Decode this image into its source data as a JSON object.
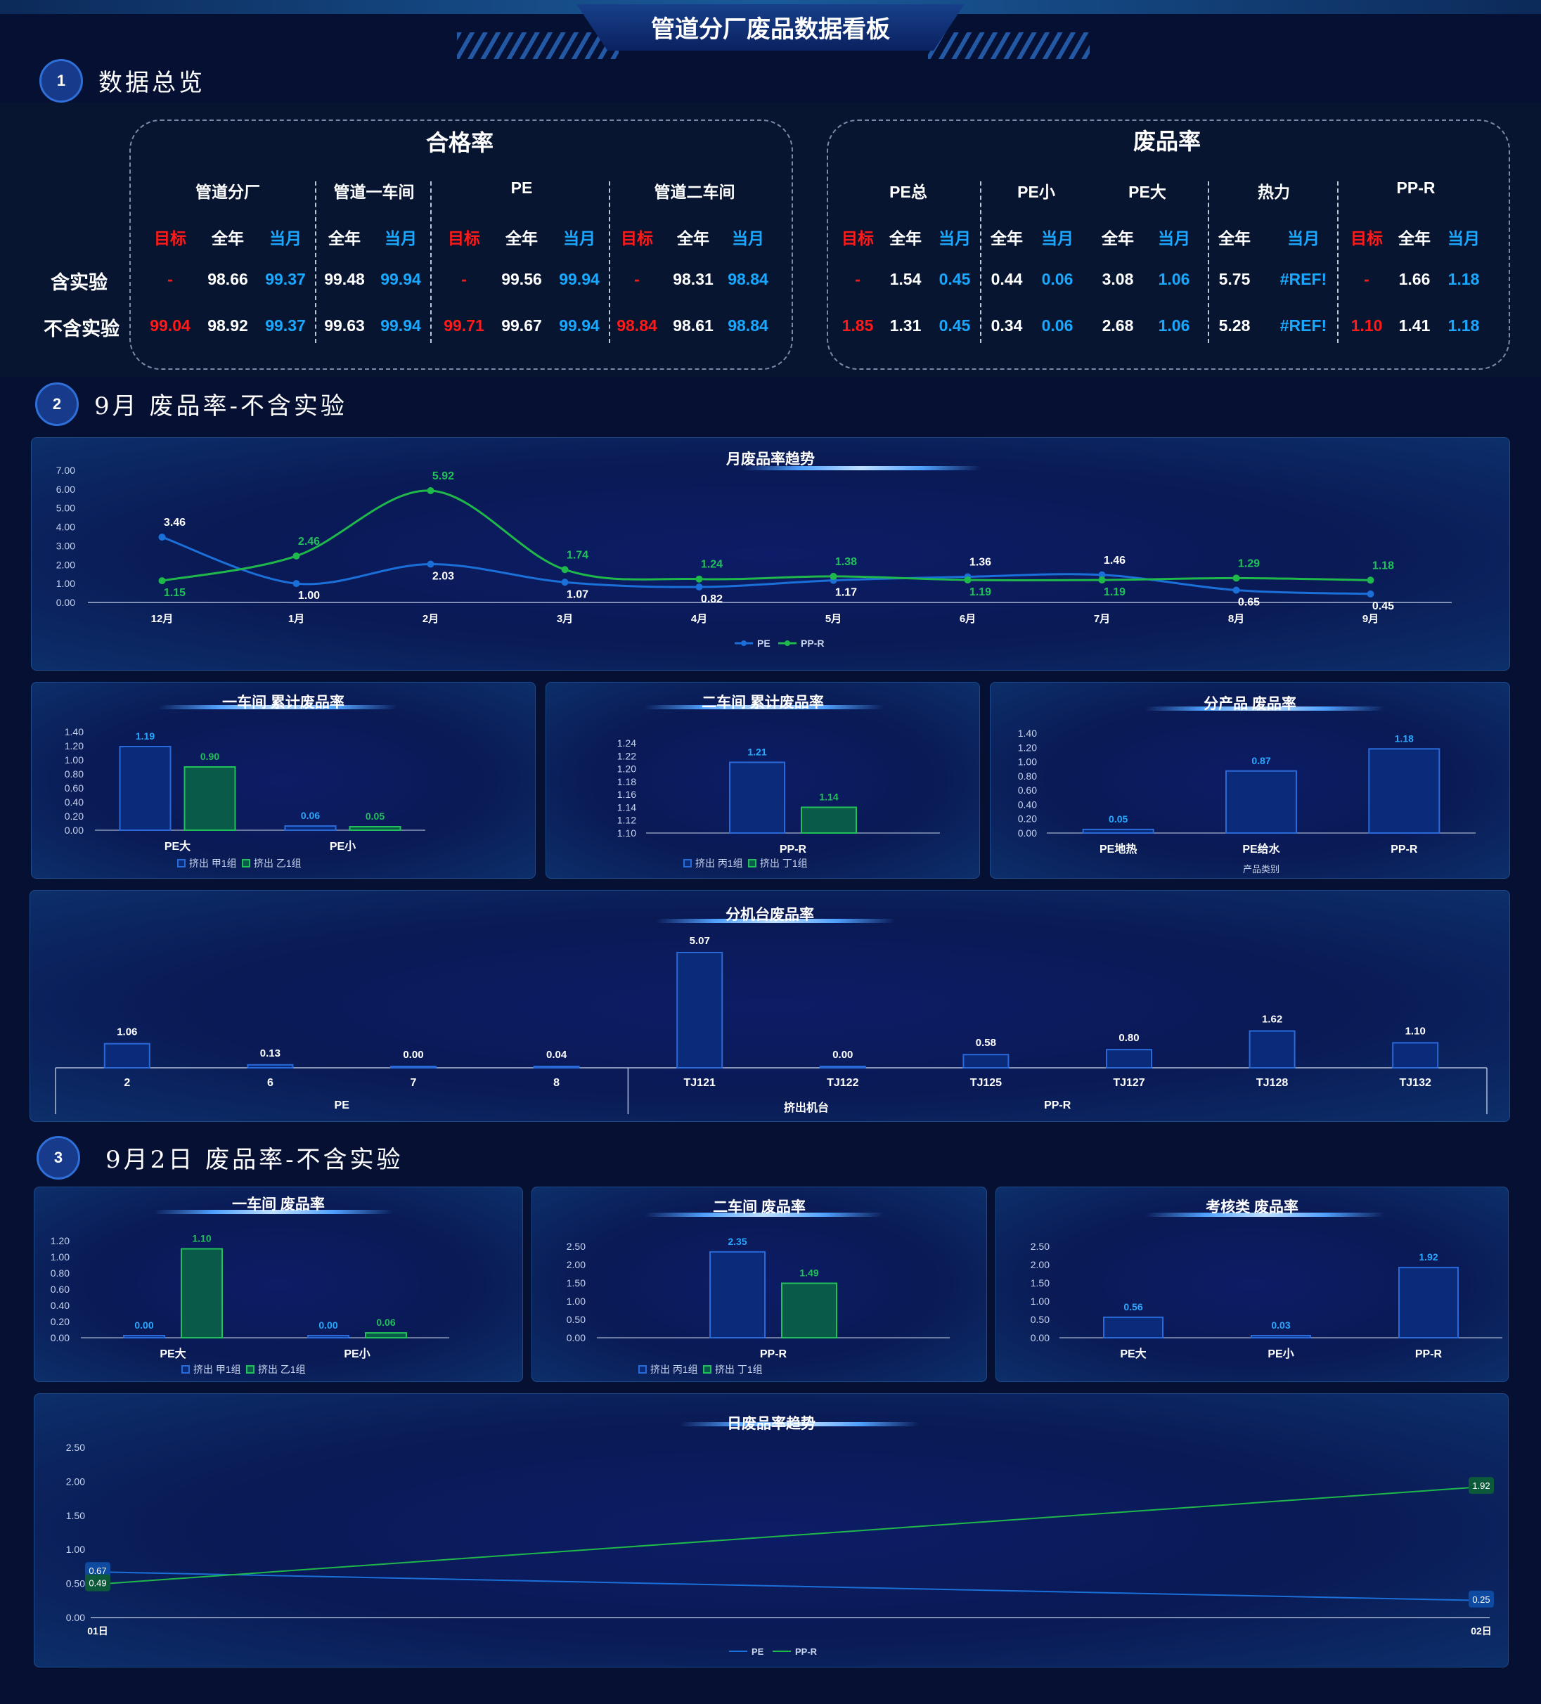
{
  "page": {
    "title": "管道分厂废品数据看板"
  },
  "sections": [
    {
      "num": "1",
      "title": "数据总览"
    },
    {
      "num": "2",
      "title": "9月 废品率-不含实验"
    },
    {
      "num": "3",
      "title": "9月2日 废品率-不含实验"
    }
  ],
  "overview": {
    "pass": {
      "title": "合格率",
      "groups": [
        "管道分厂",
        "管道一车间",
        "PE",
        "管道二车间"
      ],
      "subheads": [
        {
          "t": "目标",
          "c": "red"
        },
        {
          "t": "全年",
          "c": "white"
        },
        {
          "t": "当月",
          "c": "blue"
        },
        {
          "t": "全年",
          "c": "white"
        },
        {
          "t": "当月",
          "c": "blue"
        },
        {
          "t": "目标",
          "c": "red"
        },
        {
          "t": "全年",
          "c": "white"
        },
        {
          "t": "当月",
          "c": "blue"
        },
        {
          "t": "目标",
          "c": "red"
        },
        {
          "t": "全年",
          "c": "white"
        },
        {
          "t": "当月",
          "c": "blue"
        }
      ],
      "rows": [
        [
          "-",
          "98.66",
          "99.37",
          "99.48",
          "99.94",
          "-",
          "99.56",
          "99.94",
          "-",
          "98.31",
          "98.84"
        ],
        [
          "99.04",
          "98.92",
          "99.37",
          "99.63",
          "99.94",
          "99.71",
          "99.67",
          "99.94",
          "98.84",
          "98.61",
          "98.84"
        ]
      ]
    },
    "scrap": {
      "title": "废品率",
      "groups": [
        "PE总",
        "PE小",
        "PE大",
        "热力",
        "PP-R"
      ],
      "subheads": [
        {
          "t": "目标",
          "c": "red"
        },
        {
          "t": "全年",
          "c": "white"
        },
        {
          "t": "当月",
          "c": "blue"
        },
        {
          "t": "全年",
          "c": "white"
        },
        {
          "t": "当月",
          "c": "blue"
        },
        {
          "t": "全年",
          "c": "white"
        },
        {
          "t": "当月",
          "c": "blue"
        },
        {
          "t": "全年",
          "c": "white"
        },
        {
          "t": "当月",
          "c": "blue"
        },
        {
          "t": "目标",
          "c": "red"
        },
        {
          "t": "全年",
          "c": "white"
        },
        {
          "t": "当月",
          "c": "blue"
        }
      ],
      "rows": [
        [
          "-",
          "1.54",
          "0.45",
          "0.44",
          "0.06",
          "3.08",
          "1.06",
          "5.75",
          "#REF!",
          "-",
          "1.66",
          "1.18"
        ],
        [
          "1.85",
          "1.31",
          "0.45",
          "0.34",
          "0.06",
          "2.68",
          "1.06",
          "5.28",
          "#REF!",
          "1.10",
          "1.41",
          "1.18"
        ]
      ]
    },
    "row_labels": [
      "含实验",
      "不含实验"
    ]
  },
  "colors": {
    "pe": "#1b6fd8",
    "ppr": "#1fb84a",
    "target": "#ff1a1a",
    "current": "#1aa8ff"
  },
  "chart_data": [
    {
      "id": "monthly",
      "type": "line",
      "title": "月废品率趋势",
      "categories": [
        "12月",
        "1月",
        "2月",
        "3月",
        "4月",
        "5月",
        "6月",
        "7月",
        "8月",
        "9月"
      ],
      "series": [
        {
          "name": "PE",
          "values": [
            3.46,
            1.0,
            2.03,
            1.07,
            0.82,
            1.17,
            1.36,
            1.46,
            0.65,
            0.45
          ]
        },
        {
          "name": "PP-R",
          "values": [
            1.15,
            2.46,
            5.92,
            1.74,
            1.24,
            1.38,
            1.19,
            1.19,
            1.29,
            1.18
          ]
        }
      ],
      "yticks": [
        "0.00",
        "1.00",
        "2.00",
        "3.00",
        "4.00",
        "5.00",
        "6.00",
        "7.00"
      ],
      "ylim": [
        0,
        7
      ],
      "legend": "bottom"
    },
    {
      "id": "w1cum",
      "type": "bar",
      "title": "一车间 累计废品率",
      "categories": [
        "PE大",
        "PE小"
      ],
      "series": [
        {
          "name": "挤出 甲1组",
          "values": [
            1.19,
            0.06
          ]
        },
        {
          "name": "挤出 乙1组",
          "values": [
            0.9,
            0.05
          ]
        }
      ],
      "yticks": [
        "0.00",
        "0.20",
        "0.40",
        "0.60",
        "0.80",
        "1.00",
        "1.20",
        "1.40"
      ],
      "ylim": [
        0,
        1.4
      ],
      "legend": "bottom"
    },
    {
      "id": "w2cum",
      "type": "bar",
      "title": "二车间 累计废品率",
      "categories": [
        "PP-R"
      ],
      "series": [
        {
          "name": "挤出 丙1组",
          "values": [
            1.21
          ]
        },
        {
          "name": "挤出 丁1组",
          "values": [
            1.14
          ]
        }
      ],
      "yticks": [
        "1.10",
        "1.12",
        "1.14",
        "1.16",
        "1.18",
        "1.20",
        "1.22",
        "1.24"
      ],
      "ylim": [
        1.1,
        1.24
      ],
      "legend": "bottom"
    },
    {
      "id": "product",
      "type": "bar",
      "title": "分产品 废品率",
      "categories": [
        "PE地热",
        "PE给水",
        "PP-R"
      ],
      "series": [
        {
          "values": [
            0.05,
            0.87,
            1.18
          ]
        }
      ],
      "xlabel": "产品类别",
      "yticks": [
        "0.00",
        "0.20",
        "0.40",
        "0.60",
        "0.80",
        "1.00",
        "1.20",
        "1.40"
      ],
      "ylim": [
        0,
        1.4
      ]
    },
    {
      "id": "machine",
      "type": "bar",
      "title": "分机台废品率",
      "categories": [
        "2",
        "6",
        "7",
        "8",
        "TJ121",
        "TJ122",
        "TJ125",
        "TJ127",
        "TJ128",
        "TJ132"
      ],
      "groups": [
        {
          "label": "PE",
          "span": 4
        },
        {
          "label": "PP-R",
          "span": 6
        }
      ],
      "series": [
        {
          "values": [
            1.06,
            0.13,
            0.0,
            0.04,
            5.07,
            0.0,
            0.58,
            0.8,
            1.62,
            1.1
          ]
        }
      ],
      "xlabel": "挤出机台",
      "ylim": [
        0,
        5.07
      ]
    },
    {
      "id": "w1day",
      "type": "bar",
      "title": "一车间 废品率",
      "categories": [
        "PE大",
        "PE小"
      ],
      "series": [
        {
          "name": "挤出 甲1组",
          "values": [
            0.0,
            0.0
          ]
        },
        {
          "name": "挤出 乙1组",
          "values": [
            1.1,
            0.06
          ]
        }
      ],
      "yticks": [
        "0.00",
        "0.20",
        "0.40",
        "0.60",
        "0.80",
        "1.00",
        "1.20"
      ],
      "ylim": [
        0,
        1.2
      ],
      "legend": "bottom"
    },
    {
      "id": "w2day",
      "type": "bar",
      "title": "二车间 废品率",
      "categories": [
        "PP-R"
      ],
      "series": [
        {
          "name": "挤出 丙1组",
          "values": [
            2.35
          ]
        },
        {
          "name": "挤出 丁1组",
          "values": [
            1.49
          ]
        }
      ],
      "yticks": [
        "0.00",
        "0.50",
        "1.00",
        "1.50",
        "2.00",
        "2.50"
      ],
      "ylim": [
        0,
        2.5
      ],
      "legend": "bottom"
    },
    {
      "id": "assess",
      "type": "bar",
      "title": "考核类 废品率",
      "categories": [
        "PE大",
        "PE小",
        "PP-R"
      ],
      "series": [
        {
          "values": [
            0.56,
            0.03,
            1.92
          ]
        }
      ],
      "yticks": [
        "0.00",
        "0.50",
        "1.00",
        "1.50",
        "2.00",
        "2.50"
      ],
      "ylim": [
        0,
        2.5
      ]
    },
    {
      "id": "daily",
      "type": "line",
      "title": "日废品率趋势",
      "categories": [
        "01日",
        "02日"
      ],
      "series": [
        {
          "name": "PE",
          "values": [
            0.67,
            0.25
          ]
        },
        {
          "name": "PP-R",
          "values": [
            0.49,
            1.92
          ]
        }
      ],
      "yticks": [
        "0.00",
        "0.50",
        "1.00",
        "1.50",
        "2.00",
        "2.50"
      ],
      "ylim": [
        0,
        2.5
      ],
      "legend": "bottom"
    }
  ]
}
